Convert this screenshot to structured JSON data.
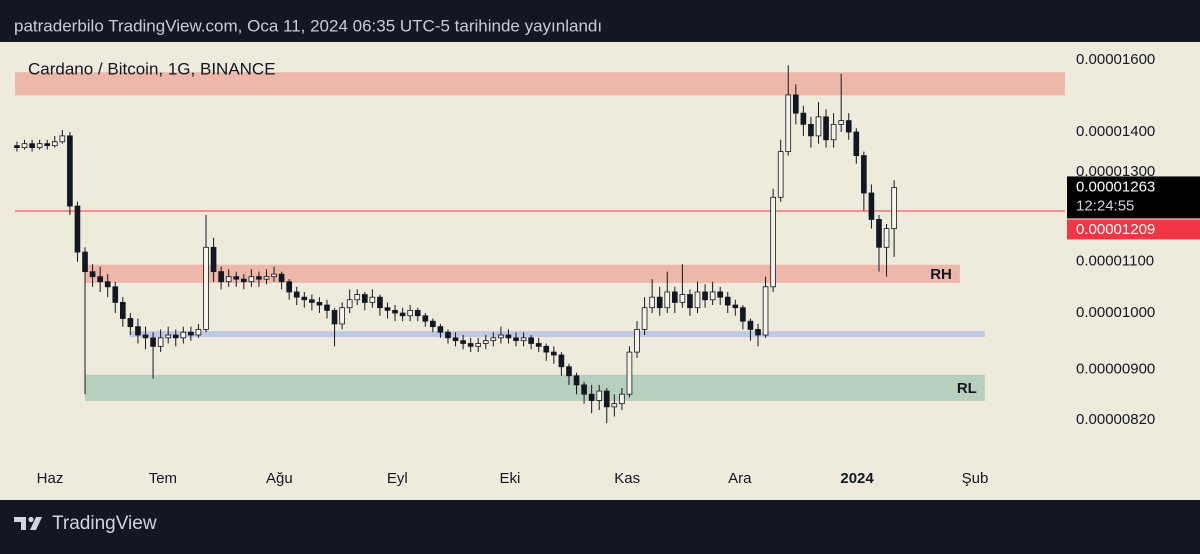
{
  "header": "patraderbilo TradingView.com, Oca 11, 2024 06:35 UTC-5 tarihinde yayınlandı",
  "footer": "TradingView",
  "chart_data": {
    "type": "candlestick",
    "title": "Cardano / Bitcoin, 1G, BINANCE",
    "log_scale": true,
    "grid": false,
    "up_color": "#f5f3ea",
    "down_color": "#131722",
    "wick_color": "#131722",
    "ylim": [
      7.61e-06,
      1.655e-05
    ],
    "yticks": [
      {
        "value": 1.6e-05,
        "label": "0.00001600"
      },
      {
        "value": 1.4e-05,
        "label": "0.00001400"
      },
      {
        "value": 1.3e-05,
        "label": "0.00001300"
      },
      {
        "value": 1.1e-05,
        "label": "0.00001100"
      },
      {
        "value": 1e-05,
        "label": "0.00001000"
      },
      {
        "value": 9e-06,
        "label": "0.00000900"
      },
      {
        "value": 8.2e-06,
        "label": "0.00000820"
      }
    ],
    "xlim": [
      -0.26,
      138.6
    ],
    "xticks": [
      {
        "value": 4.37,
        "label": "Haz"
      },
      {
        "value": 19.3,
        "label": "Tem"
      },
      {
        "value": 34.7,
        "label": "Ağu"
      },
      {
        "value": 50.3,
        "label": "Eyl"
      },
      {
        "value": 65.2,
        "label": "Eki"
      },
      {
        "value": 80.7,
        "label": "Kas"
      },
      {
        "value": 95.6,
        "label": "Ara"
      },
      {
        "value": 111.1,
        "label": "2024",
        "bold": true
      },
      {
        "value": 126.7,
        "label": "Şub"
      }
    ],
    "open": [
      1.365e-05,
      1.36e-05,
      1.37e-05,
      1.36e-05,
      1.37e-05,
      1.365e-05,
      1.375e-05,
      1.39e-05,
      1.22e-05,
      1.12e-05,
      1.08e-05,
      1.07e-05,
      1.06e-05,
      1.05e-05,
      1.02e-05,
      9.9e-06,
      9.75e-06,
      9.6e-06,
      9.55e-06,
      9.4e-06,
      9.55e-06,
      9.6e-06,
      9.55e-06,
      9.65e-06,
      9.6e-06,
      9.7e-06,
      1.13e-05,
      1.08e-05,
      1.06e-05,
      1.07e-05,
      1.065e-05,
      1.06e-05,
      1.07e-05,
      1.065e-05,
      1.07e-05,
      1.075e-05,
      1.06e-05,
      1.04e-05,
      1.03e-05,
      1.025e-05,
      1.02e-05,
      1.015e-05,
      1.005e-05,
      9.8e-06,
      1.01e-05,
      1.025e-05,
      1.035e-05,
      1.02e-05,
      1.03e-05,
      1.01e-05,
      1.005e-05,
      1e-05,
      9.95e-06,
      1.005e-05,
      9.95e-06,
      9.85e-06,
      9.75e-06,
      9.65e-06,
      9.55e-06,
      9.5e-06,
      9.45e-06,
      9.4e-06,
      9.45e-06,
      9.5e-06,
      9.55e-06,
      9.6e-06,
      9.55e-06,
      9.5e-06,
      9.55e-06,
      9.45e-06,
      9.4e-06,
      9.3e-06,
      9.25e-06,
      9.05e-06,
      8.9e-06,
      8.75e-06,
      8.6e-06,
      8.5e-06,
      8.65e-06,
      8.4e-06,
      8.45e-06,
      8.6e-06,
      9.3e-06,
      9.7e-06,
      1.01e-05,
      1.03e-05,
      1.01e-05,
      1.04e-05,
      1.02e-05,
      1.035e-05,
      1.01e-05,
      1.04e-05,
      1.025e-05,
      1.04e-05,
      1.03e-05,
      1.015e-05,
      1.01e-05,
      9.85e-06,
      9.7e-06,
      9.6e-06,
      1.05e-05,
      1.24e-05,
      1.35e-05,
      1.5e-05,
      1.45e-05,
      1.42e-05,
      1.39e-05,
      1.44e-05,
      1.38e-05,
      1.42e-05,
      1.43e-05,
      1.4e-05,
      1.34e-05,
      1.25e-05,
      1.19e-05,
      1.13e-05,
      1.17e-05
    ],
    "high": [
      1.375e-05,
      1.38e-05,
      1.38e-05,
      1.38e-05,
      1.38e-05,
      1.39e-05,
      1.405e-05,
      1.4e-05,
      1.23e-05,
      1.13e-05,
      1.095e-05,
      1.09e-05,
      1.075e-05,
      1.06e-05,
      1.03e-05,
      1e-05,
      9.9e-06,
      9.75e-06,
      9.65e-06,
      9.7e-06,
      9.75e-06,
      9.7e-06,
      9.75e-06,
      9.75e-06,
      9.8e-06,
      1.2e-05,
      1.15e-05,
      1.09e-05,
      1.085e-05,
      1.08e-05,
      1.075e-05,
      1.085e-05,
      1.08e-05,
      1.085e-05,
      1.09e-05,
      1.08e-05,
      1.065e-05,
      1.05e-05,
      1.04e-05,
      1.035e-05,
      1.03e-05,
      1.025e-05,
      1.01e-05,
      1.02e-05,
      1.045e-05,
      1.045e-05,
      1.04e-05,
      1.045e-05,
      1.035e-05,
      1.02e-05,
      1.015e-05,
      1.01e-05,
      1.015e-05,
      1.01e-05,
      1e-05,
      9.9e-06,
      9.8e-06,
      9.7e-06,
      9.65e-06,
      9.6e-06,
      9.55e-06,
      9.55e-06,
      9.6e-06,
      9.65e-06,
      9.75e-06,
      9.7e-06,
      9.65e-06,
      9.65e-06,
      9.6e-06,
      9.55e-06,
      9.45e-06,
      9.4e-06,
      9.3e-06,
      9.1e-06,
      8.95e-06,
      8.8e-06,
      8.75e-06,
      8.75e-06,
      8.7e-06,
      8.6e-06,
      8.7e-06,
      9.4e-06,
      9.85e-06,
      1.03e-05,
      1.065e-05,
      1.05e-05,
      1.08e-05,
      1.05e-05,
      1.095e-05,
      1.045e-05,
      1.06e-05,
      1.055e-05,
      1.06e-05,
      1.05e-05,
      1.04e-05,
      1.025e-05,
      1.015e-05,
      9.9e-06,
      9.8e-06,
      1.07e-05,
      1.26e-05,
      1.38e-05,
      1.585e-05,
      1.53e-05,
      1.47e-05,
      1.44e-05,
      1.48e-05,
      1.46e-05,
      1.45e-05,
      1.56e-05,
      1.45e-05,
      1.41e-05,
      1.35e-05,
      1.27e-05,
      1.2e-05,
      1.18e-05,
      1.28e-05
    ],
    "low": [
      1.35e-05,
      1.355e-05,
      1.35e-05,
      1.355e-05,
      1.355e-05,
      1.36e-05,
      1.37e-05,
      1.2e-05,
      1.1e-05,
      8.6e-06,
      1.05e-05,
      1.04e-05,
      1.03e-05,
      1e-05,
      9.75e-06,
      9.6e-06,
      9.45e-06,
      9.35e-06,
      8.85e-06,
      9.3e-06,
      9.45e-06,
      9.4e-06,
      9.45e-06,
      9.5e-06,
      9.55e-06,
      9.65e-06,
      1.06e-05,
      1.045e-05,
      1.05e-05,
      1.05e-05,
      1.045e-05,
      1.05e-05,
      1.05e-05,
      1.055e-05,
      1.06e-05,
      1.045e-05,
      1.025e-05,
      1.015e-05,
      1.01e-05,
      1.005e-05,
      1e-05,
      9.9e-06,
      9.4e-06,
      9.7e-06,
      1e-05,
      1.015e-05,
      1.005e-05,
      1.01e-05,
      9.95e-06,
      9.9e-06,
      9.85e-06,
      9.85e-06,
      9.85e-06,
      9.85e-06,
      9.75e-06,
      9.65e-06,
      9.55e-06,
      9.45e-06,
      9.4e-06,
      9.35e-06,
      9.3e-06,
      9.3e-06,
      9.35e-06,
      9.4e-06,
      9.45e-06,
      9.45e-06,
      9.4e-06,
      9.4e-06,
      9.35e-06,
      9.3e-06,
      9.15e-06,
      9.1e-06,
      8.9e-06,
      8.75e-06,
      8.6e-06,
      8.45e-06,
      8.3e-06,
      8.35e-06,
      8.15e-06,
      8.25e-06,
      8.35e-06,
      8.55e-06,
      9.2e-06,
      9.6e-06,
      1e-05,
      9.95e-06,
      1e-05,
      1e-05,
      1.01e-05,
      9.95e-06,
      1e-05,
      1.01e-05,
      1.015e-05,
      1.015e-05,
      1e-05,
      9.95e-06,
      9.7e-06,
      9.5e-06,
      9.4e-06,
      9.55e-06,
      1.04e-05,
      1.23e-05,
      1.34e-05,
      1.42e-05,
      1.39e-05,
      1.36e-05,
      1.37e-05,
      1.36e-05,
      1.36e-05,
      1.4e-05,
      1.38e-05,
      1.32e-05,
      1.21e-05,
      1.17e-05,
      1.08e-05,
      1.07e-05,
      1.11e-05
    ],
    "close": [
      1.36e-05,
      1.37e-05,
      1.36e-05,
      1.37e-05,
      1.365e-05,
      1.375e-05,
      1.39e-05,
      1.22e-05,
      1.12e-05,
      1.08e-05,
      1.07e-05,
      1.06e-05,
      1.05e-05,
      1.02e-05,
      9.9e-06,
      9.75e-06,
      9.6e-06,
      9.55e-06,
      9.4e-06,
      9.55e-06,
      9.6e-06,
      9.55e-06,
      9.65e-06,
      9.6e-06,
      9.7e-06,
      1.13e-05,
      1.08e-05,
      1.06e-05,
      1.07e-05,
      1.065e-05,
      1.06e-05,
      1.07e-05,
      1.065e-05,
      1.07e-05,
      1.075e-05,
      1.06e-05,
      1.04e-05,
      1.03e-05,
      1.025e-05,
      1.02e-05,
      1.015e-05,
      1.005e-05,
      9.8e-06,
      1.01e-05,
      1.025e-05,
      1.035e-05,
      1.02e-05,
      1.03e-05,
      1.01e-05,
      1.005e-05,
      1e-05,
      9.95e-06,
      1.005e-05,
      9.95e-06,
      9.85e-06,
      9.75e-06,
      9.65e-06,
      9.55e-06,
      9.5e-06,
      9.45e-06,
      9.4e-06,
      9.45e-06,
      9.5e-06,
      9.55e-06,
      9.6e-06,
      9.55e-06,
      9.5e-06,
      9.55e-06,
      9.45e-06,
      9.4e-06,
      9.3e-06,
      9.25e-06,
      9.05e-06,
      8.9e-06,
      8.75e-06,
      8.6e-06,
      8.5e-06,
      8.65e-06,
      8.4e-06,
      8.45e-06,
      8.6e-06,
      9.3e-06,
      9.7e-06,
      1.01e-05,
      1.03e-05,
      1.01e-05,
      1.04e-05,
      1.02e-05,
      1.035e-05,
      1.01e-05,
      1.04e-05,
      1.025e-05,
      1.04e-05,
      1.03e-05,
      1.015e-05,
      1.01e-05,
      9.85e-06,
      9.7e-06,
      9.6e-06,
      1.05e-05,
      1.24e-05,
      1.35e-05,
      1.5e-05,
      1.45e-05,
      1.42e-05,
      1.39e-05,
      1.44e-05,
      1.38e-05,
      1.42e-05,
      1.43e-05,
      1.4e-05,
      1.34e-05,
      1.25e-05,
      1.19e-05,
      1.13e-05,
      1.17e-05,
      1.263e-05
    ],
    "zones": [
      {
        "low": 1.4987e-05,
        "high": 1.5646e-05,
        "color": "#edb8aa"
      },
      {
        "low": 1.0577e-05,
        "high": 1.094e-05,
        "start": 9.0,
        "end": 124.7,
        "color": "#edb8aa",
        "label": "RH"
      },
      {
        "low": 9.563e-06,
        "high": 9.67e-06,
        "start": 14.9,
        "end": 128.0,
        "color": "#bfc9e4",
        "start_note_free": false
      },
      {
        "low": 8.493e-06,
        "high": 8.916e-06,
        "start": 9.0,
        "end": 128.0,
        "color": "#b8cfbd",
        "label": "RL"
      }
    ],
    "price_line": {
      "value": 1.209e-05,
      "label": "0.00001209",
      "color": "#f23645"
    },
    "last_price": {
      "value": 1.263e-05,
      "label": "0.00001263",
      "countdown": "12:24:55",
      "color": "#000000"
    }
  }
}
